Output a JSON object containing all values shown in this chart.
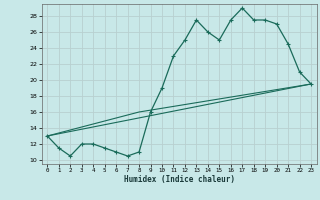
{
  "xlabel": "Humidex (Indice chaleur)",
  "background_color": "#c8e8e8",
  "grid_color": "#b8d0d0",
  "line_color": "#1a6b5a",
  "xlim": [
    -0.5,
    23.5
  ],
  "ylim": [
    9.5,
    29.5
  ],
  "xticks": [
    0,
    1,
    2,
    3,
    4,
    5,
    6,
    7,
    8,
    9,
    10,
    11,
    12,
    13,
    14,
    15,
    16,
    17,
    18,
    19,
    20,
    21,
    22,
    23
  ],
  "yticks": [
    10,
    12,
    14,
    16,
    18,
    20,
    22,
    24,
    26,
    28
  ],
  "series1": [
    13,
    11.5,
    10.5,
    12,
    12,
    11.5,
    11,
    10.5,
    11,
    16,
    19,
    23,
    25,
    27.5,
    26,
    25,
    27.5,
    29,
    27.5,
    27.5,
    27,
    24.5,
    21,
    19.5
  ],
  "series2_x": [
    0,
    23
  ],
  "series2_y": [
    13,
    19.5
  ],
  "series3_x": [
    0,
    8,
    23
  ],
  "series3_y": [
    13,
    16,
    19.5
  ]
}
